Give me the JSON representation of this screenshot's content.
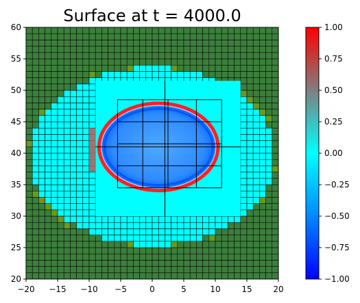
{
  "chart_data": {
    "type": "heatmap",
    "title": "Surface at t =   4000.0",
    "xlim": [
      -20,
      20
    ],
    "ylim": [
      20,
      60
    ],
    "xticks": [
      -20,
      -15,
      -10,
      -5,
      0,
      5,
      10,
      15,
      20
    ],
    "yticks": [
      20,
      25,
      30,
      35,
      40,
      45,
      50,
      55,
      60
    ],
    "colorbar": {
      "vmin": -1.0,
      "vmax": 1.0,
      "ticks": [
        "-1.00",
        "-0.75",
        "-0.50",
        "-0.25",
        "0.00",
        "0.25",
        "0.50",
        "0.75",
        "1.00"
      ],
      "colormap_stops": [
        "#0000ff",
        "#0088ff",
        "#00ffff",
        "#7f7f7f",
        "#ff0000"
      ]
    },
    "land_color": "#3b7f3b",
    "coarse_cell_size": 1.0,
    "fine_region": {
      "x": [
        -9,
        14
      ],
      "y": [
        30,
        51.5
      ]
    },
    "level2_grid": {
      "x": [
        -5.5,
        -1.5,
        2.5,
        7.0,
        11.0
      ],
      "y": [
        34.5,
        38.0,
        41.5,
        45.0,
        48.5
      ],
      "center_line_x": 2.0,
      "center_line_y": 41.0
    },
    "wave_ring": {
      "center": [
        1.0,
        41.0
      ],
      "radius_x": 9.0,
      "radius_y": 6.5,
      "amplitude_ring": 1.0,
      "amplitude_inner": -0.45
    }
  }
}
